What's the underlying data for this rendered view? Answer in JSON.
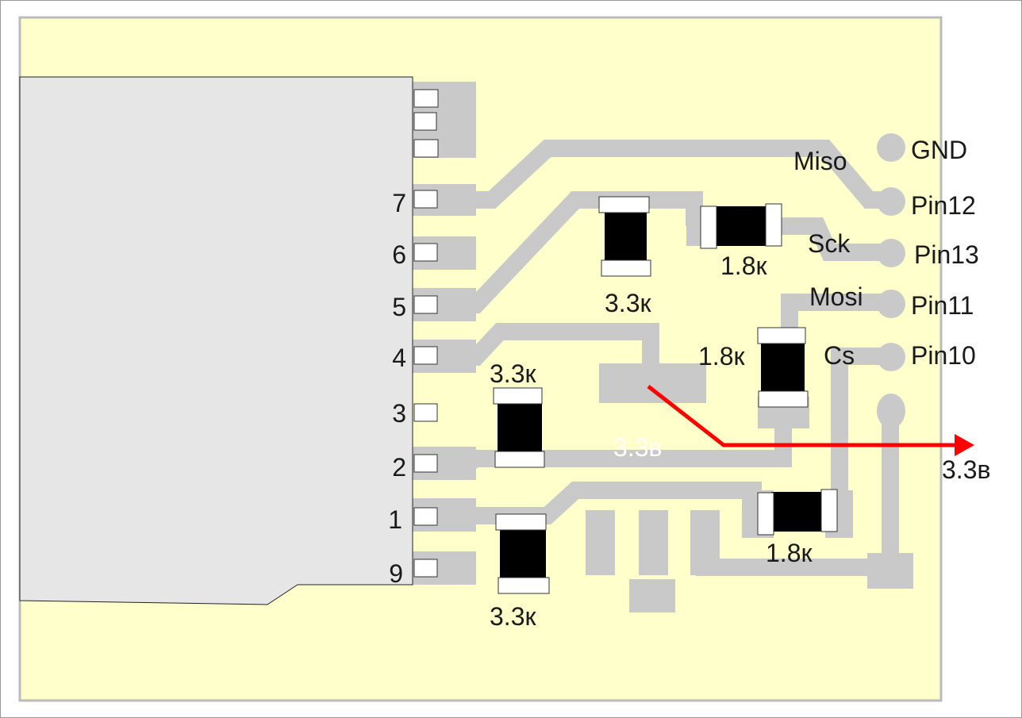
{
  "colors": {
    "board": "#ffffcc",
    "copper": "#c9c9c9",
    "connector": "#e6e6e6",
    "arrow": "#ff0000",
    "resistor_body": "#000000"
  },
  "connector_pins": [
    "7",
    "6",
    "5",
    "4",
    "3",
    "2",
    "1",
    "9"
  ],
  "header": {
    "pins": [
      "GND",
      "Pin12",
      "Pin13",
      "Pin11",
      "Pin10"
    ]
  },
  "signals": {
    "miso": "Miso",
    "sck": "Sck",
    "mosi": "Mosi",
    "cs": "Cs"
  },
  "resistors": {
    "r1": "3.3к",
    "r2": "1.8к",
    "r3": "1.8к",
    "r4": "3.3к",
    "r5": "3.3к",
    "r6": "1.8к"
  },
  "power": {
    "trace_label": "3.3в",
    "arrow_label": "3.3в"
  }
}
